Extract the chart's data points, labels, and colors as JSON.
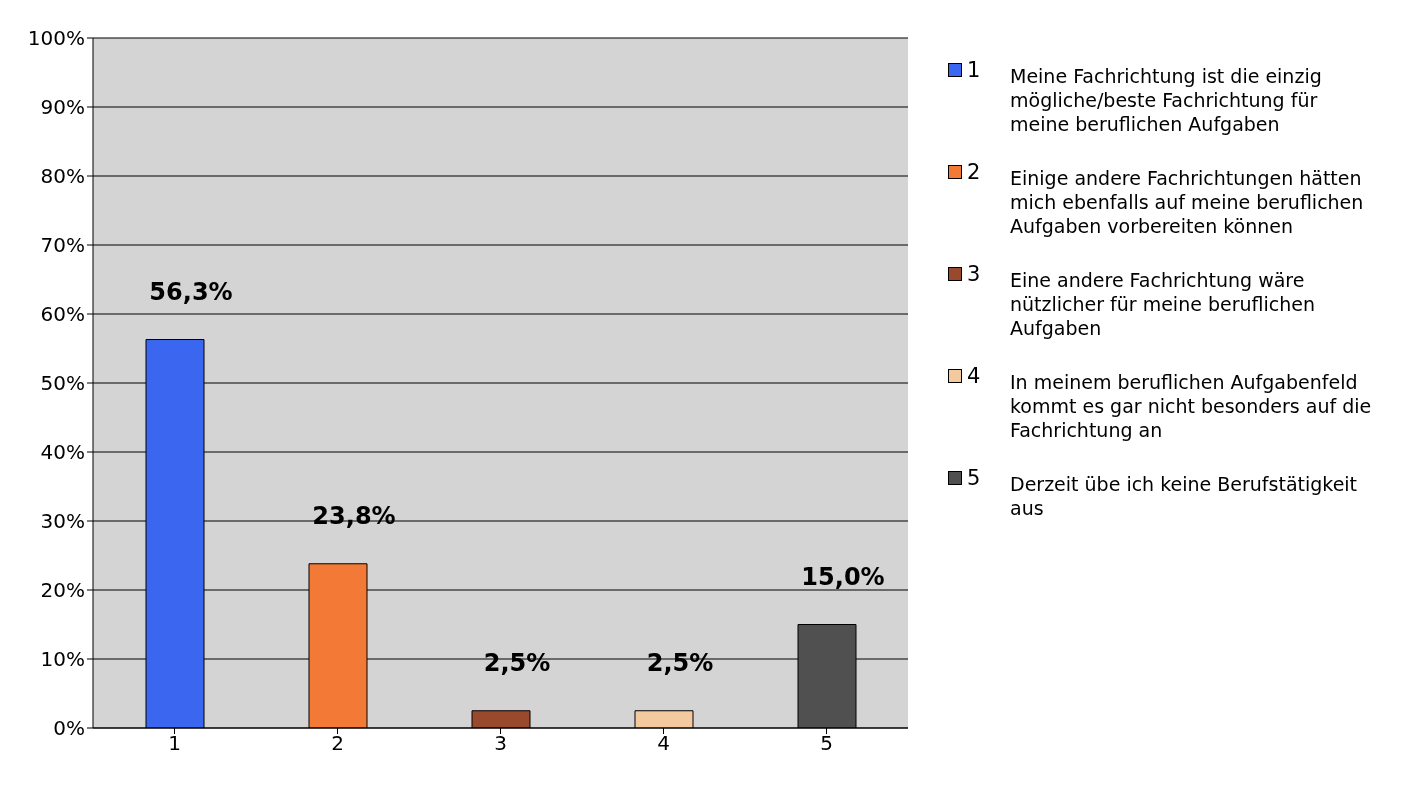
{
  "chart_data": {
    "type": "bar",
    "categories": [
      "1",
      "2",
      "3",
      "4",
      "5"
    ],
    "values": [
      56.3,
      23.8,
      2.5,
      2.5,
      15.0
    ],
    "colors": [
      "#3a66f0",
      "#f27a36",
      "#9a4a2c",
      "#f3c9a0",
      "#505050"
    ],
    "value_labels": [
      "56,3%",
      "23,8%",
      "2,5%",
      "2,5%",
      "15,0%"
    ],
    "ylim": [
      0,
      100
    ],
    "yticks": [
      {
        "value": 0,
        "label": "0%"
      },
      {
        "value": 10,
        "label": "10%"
      },
      {
        "value": 20,
        "label": "20%"
      },
      {
        "value": 30,
        "label": "30%"
      },
      {
        "value": 40,
        "label": "40%"
      },
      {
        "value": 50,
        "label": "50%"
      },
      {
        "value": 60,
        "label": "60%"
      },
      {
        "value": 70,
        "label": "70%"
      },
      {
        "value": 80,
        "label": "80%"
      },
      {
        "value": 90,
        "label": "90%"
      },
      {
        "value": 100,
        "label": "100%"
      }
    ],
    "grid": "y",
    "annotations": [
      "Meine Fachrichtung ist die einzig mögliche/beste Fachrichtung für meine beruflichen Aufgaben",
      "Einige andere Fachrichtungen hätten mich ebenfalls auf meine beruflichen Aufgaben vorbereiten können",
      "Eine andere Fachrichtung wäre nützlicher für meine beruflichen Aufgaben",
      "In meinem beruflichen Aufgabenfeld kommt es gar nicht besonders auf die Fachrichtung an",
      "Derzeit übe ich keine Berufstätigkeit aus"
    ]
  }
}
